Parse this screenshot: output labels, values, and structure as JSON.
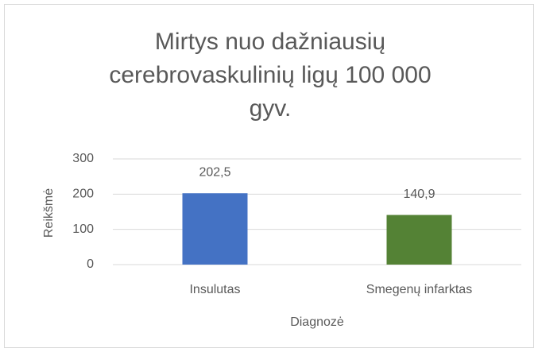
{
  "chart_data": {
    "type": "bar",
    "title": "Mirtys nuo dažniausių cerebrovaskulinių ligų 100 000 gyv.",
    "categories": [
      "Insulutas",
      "Smegenų infarktas"
    ],
    "values": [
      202.5,
      140.9
    ],
    "value_labels": [
      "202,5",
      "140,9"
    ],
    "colors": [
      "#4472c4",
      "#548235"
    ],
    "x_label": "Diagnozė",
    "y_label": "Reikšmė",
    "ylim": [
      0,
      300
    ],
    "yticks": [
      0,
      100,
      200,
      300
    ],
    "grid": true
  }
}
